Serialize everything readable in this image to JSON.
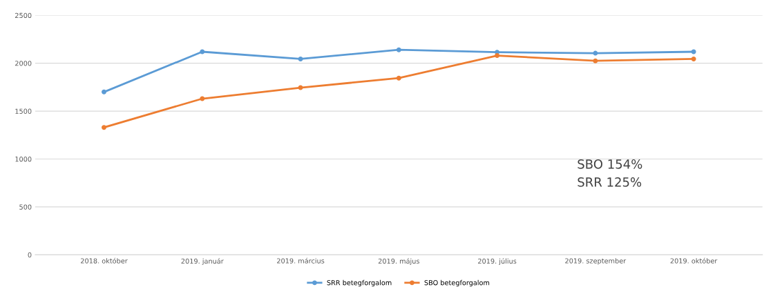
{
  "chart_data": {
    "type": "line",
    "categories": [
      "2018. október",
      "2019. január",
      "2019. március",
      "2019. május",
      "2019. július",
      "2019. szeptember",
      "2019. október"
    ],
    "series": [
      {
        "name": "SRR betegforgalom",
        "color": "#5b9bd5",
        "values": [
          1700,
          2120,
          2045,
          2140,
          2115,
          2105,
          2120
        ]
      },
      {
        "name": "SBO betegforgalom",
        "color": "#ed7d31",
        "values": [
          1330,
          1630,
          1745,
          1845,
          2080,
          2025,
          2045
        ]
      }
    ],
    "ylim": [
      0,
      2500
    ],
    "yticks": [
      0,
      500,
      1000,
      1500,
      2000,
      2500
    ],
    "grid": "y",
    "legend": "bottom",
    "marker": "circle",
    "line_style": "solid",
    "annotations": [
      "SBO 154%",
      "SRR 125%"
    ]
  }
}
